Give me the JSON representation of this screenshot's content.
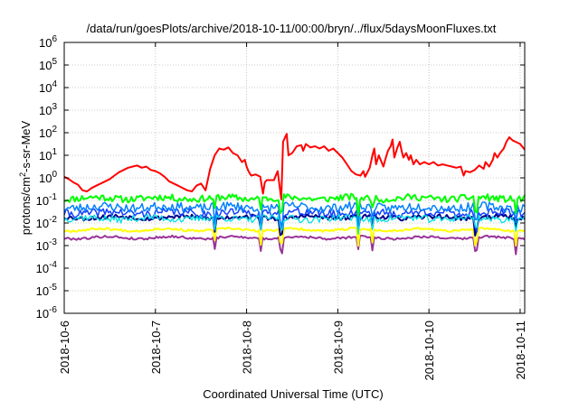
{
  "chart_data": {
    "type": "line",
    "title": "/data/run/goesPlots/archive/2018-10-11/00:00/bryn/../flux/5daysMoonFluxes.txt",
    "xlabel": "Coordinated Universal Time (UTC)",
    "ylabel": {
      "prefix": "protons/cm",
      "sup": "2",
      "suffix": "-s-sr-MeV"
    },
    "yscale": "log",
    "ylim": [
      -6,
      6
    ],
    "ytick_exponents": [
      -6,
      -5,
      -4,
      -3,
      -2,
      -1,
      0,
      1,
      2,
      3,
      4,
      5,
      6
    ],
    "ytick_base": "10",
    "x_ticks": [
      "2018-10-6",
      "2018-10-7",
      "2018-10-8",
      "2018-10-9",
      "2018-10-10",
      "2018-10-11"
    ],
    "xlim": [
      0,
      5.05
    ],
    "grid": true,
    "series": [
      {
        "color": "#ff0000",
        "width": 2.0,
        "points": [
          [
            0,
            0.05
          ],
          [
            0.05,
            -0.05
          ],
          [
            0.1,
            -0.2
          ],
          [
            0.15,
            -0.3
          ],
          [
            0.2,
            -0.55
          ],
          [
            0.25,
            -0.6
          ],
          [
            0.3,
            -0.45
          ],
          [
            0.35,
            -0.35
          ],
          [
            0.4,
            -0.25
          ],
          [
            0.45,
            -0.15
          ],
          [
            0.5,
            -0.05
          ],
          [
            0.55,
            0.1
          ],
          [
            0.6,
            0.25
          ],
          [
            0.65,
            0.35
          ],
          [
            0.7,
            0.45
          ],
          [
            0.75,
            0.5
          ],
          [
            0.8,
            0.55
          ],
          [
            0.85,
            0.45
          ],
          [
            0.9,
            0.5
          ],
          [
            0.95,
            0.35
          ],
          [
            1.0,
            0.3
          ],
          [
            1.05,
            0.2
          ],
          [
            1.1,
            0.05
          ],
          [
            1.15,
            -0.15
          ],
          [
            1.2,
            -0.25
          ],
          [
            1.25,
            -0.35
          ],
          [
            1.3,
            -0.45
          ],
          [
            1.35,
            -0.55
          ],
          [
            1.4,
            -0.6
          ],
          [
            1.45,
            -0.35
          ],
          [
            1.5,
            -0.25
          ],
          [
            1.55,
            -0.55
          ],
          [
            1.6,
            0.4
          ],
          [
            1.65,
            1.0
          ],
          [
            1.7,
            1.3
          ],
          [
            1.75,
            1.25
          ],
          [
            1.8,
            1.35
          ],
          [
            1.85,
            1.1
          ],
          [
            1.9,
            1.0
          ],
          [
            1.95,
            0.7
          ],
          [
            1.98,
            0.8
          ],
          [
            2.0,
            0.5
          ],
          [
            2.02,
            0.3
          ],
          [
            2.05,
            0.1
          ],
          [
            2.1,
            0.15
          ],
          [
            2.15,
            0.05
          ],
          [
            2.18,
            -0.7
          ],
          [
            2.2,
            -0.2
          ],
          [
            2.22,
            -0.1
          ],
          [
            2.3,
            -0.1
          ],
          [
            2.34,
            0.3
          ],
          [
            2.38,
            -0.95
          ],
          [
            2.4,
            1.6
          ],
          [
            2.44,
            1.95
          ],
          [
            2.46,
            1.0
          ],
          [
            2.5,
            1.1
          ],
          [
            2.55,
            1.4
          ],
          [
            2.6,
            1.45
          ],
          [
            2.62,
            1.2
          ],
          [
            2.65,
            1.5
          ],
          [
            2.7,
            1.35
          ],
          [
            2.75,
            1.4
          ],
          [
            2.8,
            1.3
          ],
          [
            2.85,
            1.4
          ],
          [
            2.9,
            1.2
          ],
          [
            2.95,
            1.3
          ],
          [
            3.0,
            1.1
          ],
          [
            3.05,
            0.9
          ],
          [
            3.1,
            0.6
          ],
          [
            3.15,
            0.3
          ],
          [
            3.2,
            0.15
          ],
          [
            3.25,
            0.1
          ],
          [
            3.28,
            0.3
          ],
          [
            3.3,
            0.05
          ],
          [
            3.35,
            0.45
          ],
          [
            3.38,
            1.0
          ],
          [
            3.4,
            1.3
          ],
          [
            3.42,
            0.6
          ],
          [
            3.45,
            1.0
          ],
          [
            3.5,
            0.5
          ],
          [
            3.52,
            0.8
          ],
          [
            3.55,
            1.2
          ],
          [
            3.58,
            1.4
          ],
          [
            3.6,
            1.7
          ],
          [
            3.62,
            0.9
          ],
          [
            3.65,
            1.3
          ],
          [
            3.68,
            1.6
          ],
          [
            3.7,
            1.2
          ],
          [
            3.72,
            0.9
          ],
          [
            3.75,
            1.1
          ],
          [
            3.78,
            0.8
          ],
          [
            3.8,
            1.0
          ],
          [
            3.83,
            0.6
          ],
          [
            3.86,
            0.8
          ],
          [
            3.9,
            0.6
          ],
          [
            3.95,
            0.7
          ],
          [
            4.0,
            0.6
          ],
          [
            4.05,
            0.7
          ],
          [
            4.1,
            0.55
          ],
          [
            4.15,
            0.6
          ],
          [
            4.2,
            0.55
          ],
          [
            4.25,
            0.5
          ],
          [
            4.3,
            0.45
          ],
          [
            4.35,
            0.5
          ],
          [
            4.38,
            0.1
          ],
          [
            4.4,
            0.3
          ],
          [
            4.45,
            0.25
          ],
          [
            4.5,
            0.35
          ],
          [
            4.55,
            0.55
          ],
          [
            4.6,
            0.4
          ],
          [
            4.62,
            0.7
          ],
          [
            4.66,
            0.5
          ],
          [
            4.7,
            0.8
          ],
          [
            4.72,
            1.1
          ],
          [
            4.75,
            0.9
          ],
          [
            4.78,
            1.1
          ],
          [
            4.82,
            1.3
          ],
          [
            4.85,
            1.6
          ],
          [
            4.88,
            1.8
          ],
          [
            4.92,
            1.65
          ],
          [
            4.95,
            1.6
          ],
          [
            5.0,
            1.5
          ],
          [
            5.05,
            1.25
          ]
        ]
      },
      {
        "color": "#00ff00",
        "width": 2.0,
        "base": -0.9,
        "amp": 0.15,
        "seed": 11
      },
      {
        "color": "#0080ff",
        "width": 1.5,
        "base": -1.3,
        "amp": 0.2,
        "seed": 23
      },
      {
        "color": "#00e0e0",
        "width": 1.3,
        "base": -1.8,
        "amp": 0.15,
        "seed": 37
      },
      {
        "color": "#1040ff",
        "width": 1.5,
        "base": -1.55,
        "amp": 0.18,
        "seed": 41
      },
      {
        "color": "#00008b",
        "width": 2.0,
        "base": -1.75,
        "amp": 0.1,
        "seed": 53
      },
      {
        "color": "#ffff00",
        "width": 2.0,
        "base": -2.3,
        "amp": 0.05,
        "seed": 67
      },
      {
        "color": "#993399",
        "width": 2.0,
        "base": -2.65,
        "amp": 0.05,
        "seed": 79
      }
    ],
    "dip_x": [
      1.65,
      2.15,
      2.38,
      3.22,
      3.38,
      4.5,
      4.52,
      4.95
    ]
  }
}
